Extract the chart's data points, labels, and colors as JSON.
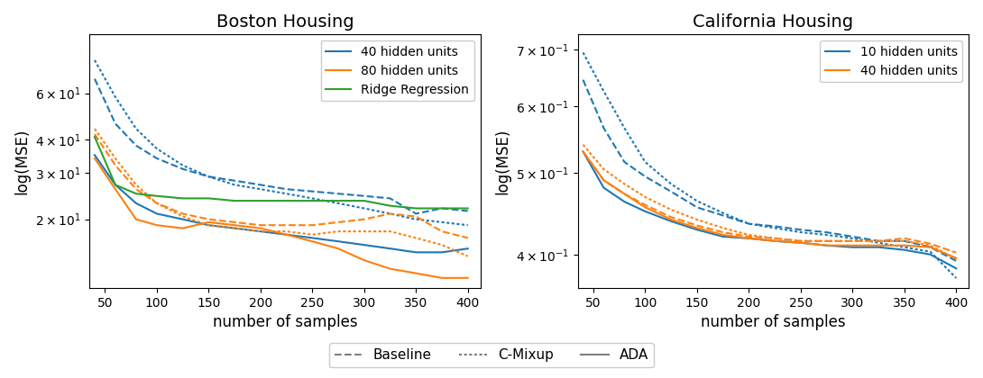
{
  "boston": {
    "title": "Boston Housing",
    "xlabel": "number of samples",
    "ylabel": "log(MSE)",
    "x": [
      40,
      60,
      80,
      100,
      125,
      150,
      175,
      200,
      225,
      250,
      275,
      300,
      325,
      350,
      375,
      400
    ],
    "blue_baseline": [
      68,
      46,
      38,
      34,
      31,
      29,
      28,
      27,
      26,
      25.5,
      25,
      24.5,
      24,
      21,
      22,
      21.5
    ],
    "blue_cmixup": [
      80,
      58,
      44,
      37,
      32,
      29,
      27,
      26,
      25,
      24,
      23,
      22,
      21,
      20,
      19.5,
      19
    ],
    "blue_ada": [
      35,
      27,
      23,
      21,
      20,
      19,
      18.5,
      18,
      17.5,
      17,
      16.5,
      16,
      15.5,
      15,
      15,
      15.5
    ],
    "orange_baseline": [
      42,
      32,
      26,
      23,
      21,
      20,
      19.5,
      19,
      19,
      19,
      19.5,
      20,
      21,
      20.5,
      18,
      17
    ],
    "orange_cmixup": [
      44,
      34,
      27,
      23,
      20.5,
      19,
      18.5,
      18,
      18,
      17.5,
      18,
      18,
      18,
      17,
      16,
      14.5
    ],
    "orange_ada": [
      34,
      26,
      20,
      19,
      18.5,
      19.5,
      19,
      18.5,
      17.5,
      16.5,
      15.5,
      14,
      13,
      12.5,
      12,
      12
    ],
    "green_ada": [
      41,
      27,
      25,
      24.5,
      24,
      24,
      23.5,
      23.5,
      23.5,
      23.5,
      23.5,
      23.5,
      22.5,
      22,
      22,
      22
    ],
    "ylim": [
      11,
      100
    ],
    "yticks": [
      20,
      30,
      40,
      60
    ]
  },
  "california": {
    "title": "California Housing",
    "xlabel": "number of samples",
    "ylabel": "log(MSE)",
    "x": [
      40,
      60,
      80,
      100,
      125,
      150,
      175,
      200,
      225,
      250,
      275,
      300,
      325,
      350,
      375,
      400
    ],
    "blue_baseline": [
      0.645,
      0.565,
      0.515,
      0.495,
      0.475,
      0.455,
      0.445,
      0.435,
      0.432,
      0.428,
      0.425,
      0.42,
      0.415,
      0.415,
      0.408,
      0.393
    ],
    "blue_cmixup": [
      0.695,
      0.625,
      0.565,
      0.515,
      0.485,
      0.463,
      0.448,
      0.435,
      0.43,
      0.425,
      0.422,
      0.418,
      0.413,
      0.408,
      0.403,
      0.375
    ],
    "blue_ada": [
      0.53,
      0.48,
      0.462,
      0.45,
      0.438,
      0.428,
      0.42,
      0.418,
      0.415,
      0.413,
      0.41,
      0.408,
      0.408,
      0.405,
      0.4,
      0.385
    ],
    "orange_baseline": [
      0.53,
      0.49,
      0.472,
      0.458,
      0.443,
      0.433,
      0.425,
      0.42,
      0.418,
      0.415,
      0.415,
      0.415,
      0.415,
      0.418,
      0.412,
      0.402
    ],
    "orange_cmixup": [
      0.54,
      0.505,
      0.485,
      0.468,
      0.452,
      0.44,
      0.43,
      0.422,
      0.418,
      0.415,
      0.415,
      0.415,
      0.415,
      0.415,
      0.41,
      0.395
    ],
    "orange_ada": [
      0.53,
      0.49,
      0.472,
      0.455,
      0.44,
      0.43,
      0.422,
      0.418,
      0.415,
      0.413,
      0.41,
      0.41,
      0.41,
      0.41,
      0.408,
      0.396
    ],
    "ylim": [
      0.365,
      0.73
    ],
    "yticks": [
      0.4,
      0.5,
      0.6,
      0.7
    ]
  },
  "blue_color": "#1f77b4",
  "orange_color": "#ff7f0e",
  "green_color": "#2ca02c",
  "gray_color": "#7f7f7f",
  "lw": 1.5
}
